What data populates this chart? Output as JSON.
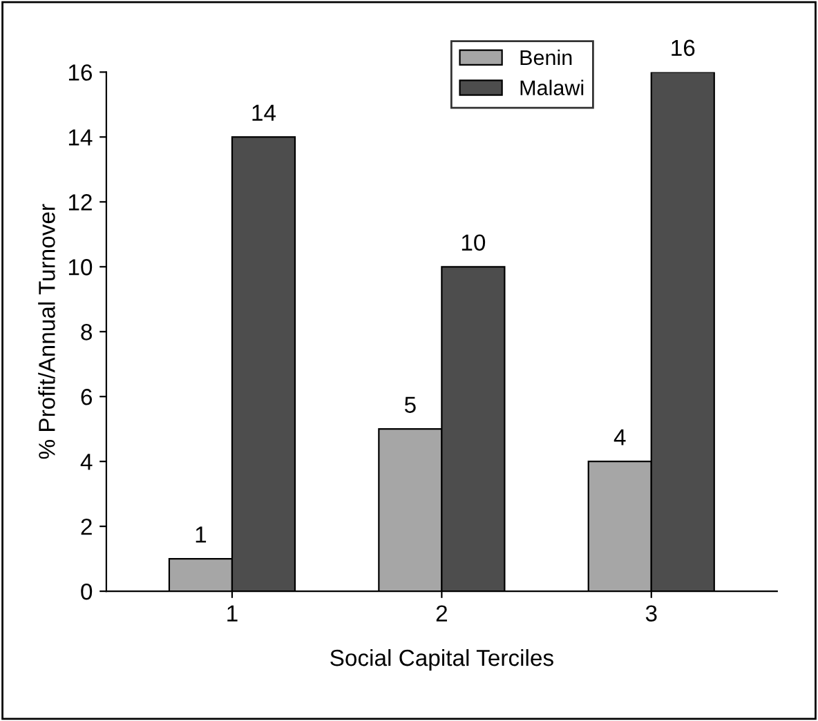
{
  "chart_data": {
    "type": "bar",
    "xlabel": "Social Capital Terciles",
    "ylabel": "% Profit/Annual Turnover",
    "categories": [
      "1",
      "2",
      "3"
    ],
    "series": [
      {
        "name": "Benin",
        "color": "#a6a6a6",
        "values": [
          1,
          5,
          4
        ]
      },
      {
        "name": "Malawi",
        "color": "#4d4d4d",
        "values": [
          14,
          10,
          16
        ]
      }
    ],
    "ylim": [
      0,
      16
    ],
    "yticks": [
      0,
      2,
      4,
      6,
      8,
      10,
      12,
      14,
      16
    ],
    "data_labels": true,
    "legend": "top right",
    "grid": false
  }
}
